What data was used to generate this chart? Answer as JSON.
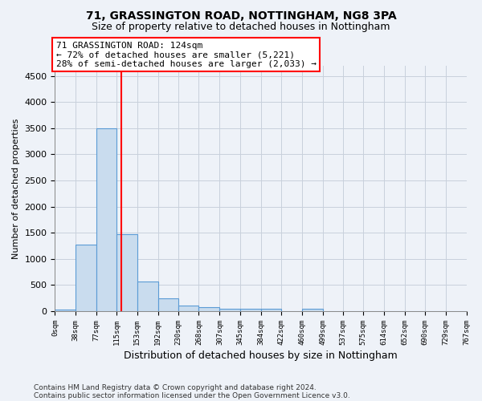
{
  "title1": "71, GRASSINGTON ROAD, NOTTINGHAM, NG8 3PA",
  "title2": "Size of property relative to detached houses in Nottingham",
  "xlabel": "Distribution of detached houses by size in Nottingham",
  "ylabel": "Number of detached properties",
  "bar_values": [
    30,
    1280,
    3500,
    1480,
    570,
    240,
    110,
    80,
    50,
    40,
    50,
    0,
    40,
    0,
    0,
    0,
    0,
    0,
    0,
    0
  ],
  "bin_edges": [
    0,
    38,
    77,
    115,
    153,
    192,
    230,
    268,
    307,
    345,
    384,
    422,
    460,
    499,
    537,
    575,
    614,
    652,
    690,
    729,
    767
  ],
  "bar_color": "#c9dcee",
  "bar_edge_color": "#5b9bd5",
  "grid_color": "#c8d0dc",
  "vline_x": 124,
  "vline_color": "red",
  "annotation_line1": "71 GRASSINGTON ROAD: 124sqm",
  "annotation_line2": "← 72% of detached houses are smaller (5,221)",
  "annotation_line3": "28% of semi-detached houses are larger (2,033) →",
  "annotation_box_color": "white",
  "annotation_box_edge_color": "red",
  "ylim": [
    0,
    4700
  ],
  "yticks": [
    0,
    500,
    1000,
    1500,
    2000,
    2500,
    3000,
    3500,
    4000,
    4500
  ],
  "footnote1": "Contains HM Land Registry data © Crown copyright and database right 2024.",
  "footnote2": "Contains public sector information licensed under the Open Government Licence v3.0.",
  "bg_color": "#eef2f8"
}
